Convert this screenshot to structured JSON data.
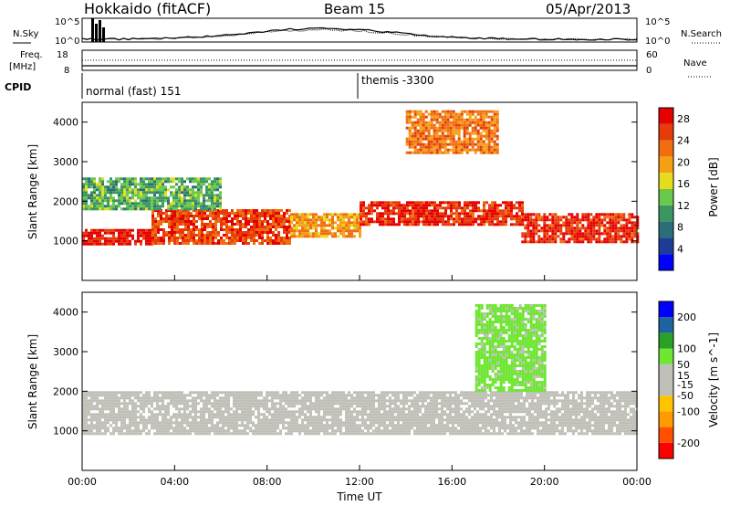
{
  "header": {
    "site": "Hokkaido (fitACF)",
    "beam": "Beam 15",
    "date": "05/Apr/2013"
  },
  "top_panel": {
    "left_label": "N.Sky",
    "right_label": "N.Search",
    "left_ticks": [
      "10^5",
      "10^0"
    ],
    "right_ticks": [
      "10^5",
      "10^0"
    ]
  },
  "freq_panel": {
    "left_label_1": "Freq.",
    "left_label_2": "[MHz]",
    "right_label": "Nave",
    "left_ticks": [
      "18",
      "8"
    ],
    "right_ticks": [
      "60",
      "0"
    ]
  },
  "cpid_panel": {
    "label": "CPID",
    "segments": [
      {
        "start": "00:00",
        "text": "normal (fast) 151"
      },
      {
        "start": "12:00",
        "text": "themis -3300"
      }
    ]
  },
  "colors": {
    "power_scale": [
      "#0000ff",
      "#1e3c96",
      "#2c6e78",
      "#3c9664",
      "#6ac84a",
      "#e6dc1e",
      "#f5a014",
      "#f06e10",
      "#e63c0a",
      "#e60000"
    ],
    "velocity_scale": [
      "#ff0000",
      "#ff5000",
      "#ff9a00",
      "#ffc400",
      "#c0c0b8",
      "#c0c0b8",
      "#6ee632",
      "#2aa028",
      "#1e64a0",
      "#0000ff"
    ]
  },
  "chart_data": [
    {
      "type": "heatmap",
      "name": "power-panel",
      "xlabel": "",
      "ylabel": "Slant Range [km]",
      "x_ticks": [
        "00:00",
        "04:00",
        "08:00",
        "12:00",
        "16:00",
        "20:00",
        "00:00"
      ],
      "y_ticks": [
        1000,
        2000,
        3000,
        4000
      ],
      "ylim": [
        0,
        4500
      ],
      "xlim_hours": [
        0,
        24
      ],
      "colorbar": {
        "label": "Power [dB]",
        "ticks": [
          4,
          8,
          12,
          16,
          20,
          24,
          28
        ],
        "range": [
          0,
          30
        ]
      },
      "bands": [
        {
          "t": [
            0,
            3
          ],
          "range_km": [
            900,
            1300
          ],
          "value_db": 28
        },
        {
          "t": [
            3,
            9
          ],
          "range_km": [
            900,
            1800
          ],
          "value_db": 25
        },
        {
          "t": [
            9,
            12
          ],
          "range_km": [
            1100,
            1700
          ],
          "value_db": 20
        },
        {
          "t": [
            12,
            19
          ],
          "range_km": [
            1400,
            2000
          ],
          "value_db": 27
        },
        {
          "t": [
            19,
            24
          ],
          "range_km": [
            1000,
            1700
          ],
          "value_db": 27
        },
        {
          "t": [
            0,
            6
          ],
          "range_km": [
            1800,
            2600
          ],
          "value_db": 12
        },
        {
          "t": [
            14,
            18
          ],
          "range_km": [
            3200,
            4300
          ],
          "value_db": 22
        }
      ]
    },
    {
      "type": "heatmap",
      "name": "velocity-panel",
      "xlabel": "Time UT",
      "ylabel": "Slant Range [km]",
      "x_ticks": [
        "00:00",
        "04:00",
        "08:00",
        "12:00",
        "16:00",
        "20:00",
        "00:00"
      ],
      "y_ticks": [
        1000,
        2000,
        3000,
        4000
      ],
      "ylim": [
        0,
        4500
      ],
      "xlim_hours": [
        0,
        24
      ],
      "colorbar": {
        "label": "Velocity [m s^-1]",
        "ticks": [
          200,
          100,
          50,
          15,
          -15,
          -50,
          -100,
          -200
        ],
        "range": [
          -250,
          250
        ]
      },
      "bands": [
        {
          "t": [
            0,
            24
          ],
          "range_km": [
            900,
            2000
          ],
          "value_ms": 0
        },
        {
          "t": [
            17,
            20
          ],
          "range_km": [
            2000,
            4200
          ],
          "value_ms": 60
        }
      ]
    }
  ]
}
